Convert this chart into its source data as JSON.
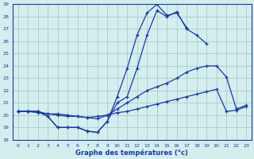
{
  "hours": [
    0,
    1,
    2,
    3,
    4,
    5,
    6,
    7,
    8,
    9,
    10,
    11,
    12,
    13,
    14,
    15,
    16,
    17,
    18,
    19,
    20,
    21,
    22,
    23
  ],
  "line1": [
    20.3,
    20.3,
    20.3,
    19.9,
    19.0,
    19.0,
    19.0,
    18.7,
    18.6,
    19.5,
    21.5,
    23.8,
    26.5,
    28.3,
    29.0,
    28.1,
    28.3,
    27.1,
    null,
    null,
    null,
    null,
    null,
    null
  ],
  "line2": [
    20.3,
    20.3,
    20.3,
    19.9,
    19.0,
    19.0,
    19.0,
    18.7,
    18.6,
    19.5,
    21.0,
    21.5,
    23.8,
    26.5,
    28.5,
    28.0,
    28.4,
    27.0,
    26.5,
    25.8,
    null,
    null,
    null,
    null
  ],
  "line3": [
    20.3,
    20.3,
    20.3,
    20.1,
    20.0,
    19.9,
    19.9,
    19.8,
    19.7,
    20.0,
    20.5,
    21.0,
    21.5,
    22.0,
    22.3,
    22.6,
    23.0,
    23.5,
    23.8,
    24.0,
    24.0,
    23.1,
    20.5,
    20.8
  ],
  "line4": [
    20.3,
    20.3,
    20.2,
    20.1,
    20.1,
    20.0,
    19.9,
    19.8,
    19.9,
    20.0,
    20.2,
    20.3,
    20.5,
    20.7,
    20.9,
    21.1,
    21.3,
    21.5,
    21.7,
    21.9,
    22.1,
    20.3,
    20.4,
    20.7
  ],
  "line_color": "#1a3a9e",
  "marker": "+",
  "bg_color": "#d4eeee",
  "grid_color": "#a8cccc",
  "axis_color": "#1a3a9e",
  "xlabel": "Graphe des températures (°c)",
  "ylim": [
    18,
    29
  ],
  "xlim_min": -0.5,
  "xlim_max": 23.5,
  "yticks": [
    18,
    19,
    20,
    21,
    22,
    23,
    24,
    25,
    26,
    27,
    28,
    29
  ],
  "xticks": [
    0,
    1,
    2,
    3,
    4,
    5,
    6,
    7,
    8,
    9,
    10,
    11,
    12,
    13,
    14,
    15,
    16,
    17,
    18,
    19,
    20,
    21,
    22,
    23
  ]
}
